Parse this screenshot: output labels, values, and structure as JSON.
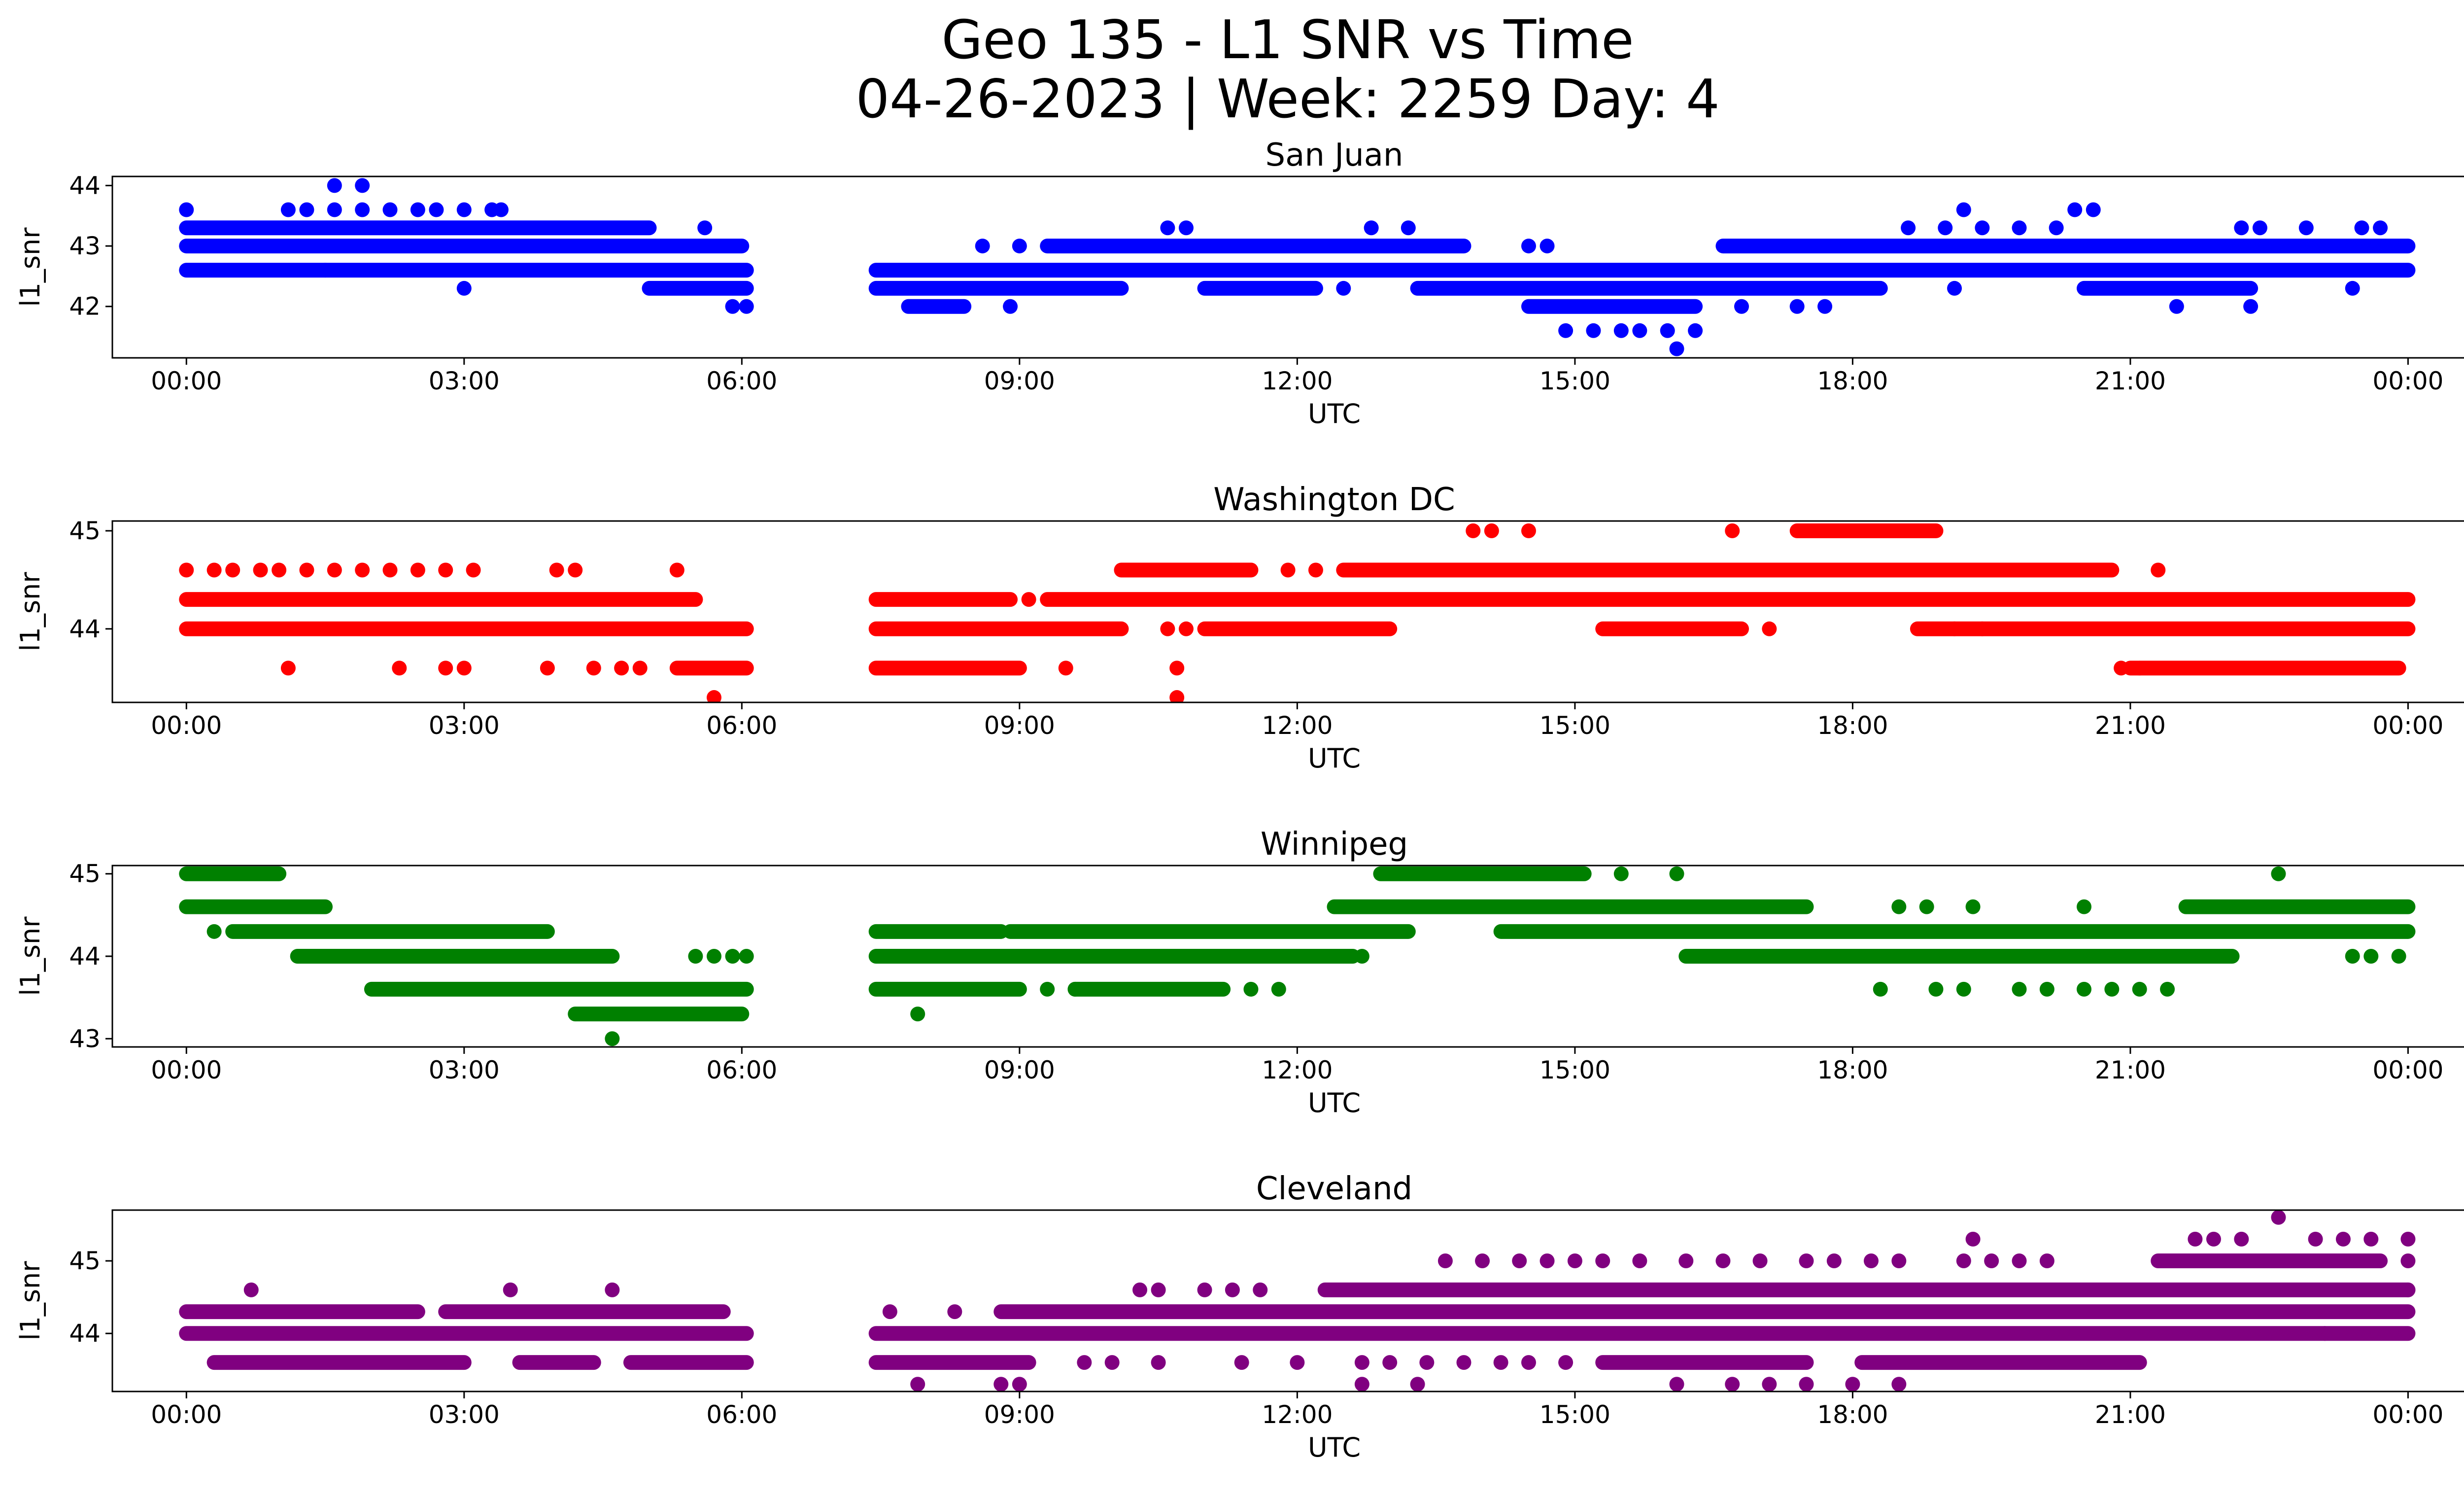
{
  "figure": {
    "title_line1": "Geo 135 - L1 SNR vs Time",
    "title_line2": "04-26-2023 | Week: 2259 Day: 4"
  },
  "chart_data": [
    {
      "type": "scatter",
      "title": "San Juan",
      "xlabel": "UTC",
      "ylabel": "l1_snr",
      "color": "#0000ff",
      "xlim_hours": [
        -0.8,
        25.6
      ],
      "ylim": [
        41.15,
        44.15
      ],
      "x_ticks": [
        "00:00",
        "03:00",
        "06:00",
        "09:00",
        "12:00",
        "15:00",
        "18:00",
        "21:00",
        "00:00"
      ],
      "y_ticks": [
        42,
        43,
        44
      ],
      "gap_hours": [
        6.05,
        7.45
      ],
      "series": [
        {
          "y": 43.3,
          "ranges": [
            [
              0.0,
              5.0
            ]
          ]
        },
        {
          "y": 43.0,
          "ranges": [
            [
              0.0,
              6.0
            ],
            [
              9.3,
              13.8
            ],
            [
              16.6,
              24.0
            ]
          ]
        },
        {
          "y": 42.6,
          "ranges": [
            [
              0.0,
              6.05
            ],
            [
              7.45,
              24.0
            ]
          ]
        },
        {
          "y": 42.3,
          "ranges": [
            [
              5.0,
              6.05
            ],
            [
              7.45,
              10.1
            ],
            [
              11.0,
              12.2
            ],
            [
              13.3,
              18.3
            ],
            [
              20.5,
              22.3
            ]
          ]
        },
        {
          "y": 42.0,
          "ranges": [
            [
              7.8,
              8.4
            ],
            [
              14.5,
              16.3
            ]
          ]
        }
      ],
      "points": [
        {
          "x": 0.0,
          "y": 43.6
        },
        {
          "x": 1.1,
          "y": 43.6
        },
        {
          "x": 1.3,
          "y": 43.6
        },
        {
          "x": 1.6,
          "y": 43.6
        },
        {
          "x": 1.9,
          "y": 43.6
        },
        {
          "x": 2.2,
          "y": 43.6
        },
        {
          "x": 2.5,
          "y": 43.6
        },
        {
          "x": 2.7,
          "y": 43.6
        },
        {
          "x": 3.0,
          "y": 43.6
        },
        {
          "x": 3.3,
          "y": 43.6
        },
        {
          "x": 3.4,
          "y": 43.6
        },
        {
          "x": 1.6,
          "y": 44.0
        },
        {
          "x": 1.9,
          "y": 44.0
        },
        {
          "x": 1.5,
          "y": 42.6
        },
        {
          "x": 3.0,
          "y": 42.3
        },
        {
          "x": 5.6,
          "y": 43.3
        },
        {
          "x": 5.9,
          "y": 42.0
        },
        {
          "x": 6.05,
          "y": 42.0
        },
        {
          "x": 8.6,
          "y": 43.0
        },
        {
          "x": 9.0,
          "y": 43.0
        },
        {
          "x": 8.9,
          "y": 42.0
        },
        {
          "x": 10.6,
          "y": 43.3
        },
        {
          "x": 10.8,
          "y": 43.3
        },
        {
          "x": 12.8,
          "y": 43.3
        },
        {
          "x": 13.2,
          "y": 43.3
        },
        {
          "x": 12.5,
          "y": 42.3
        },
        {
          "x": 14.5,
          "y": 43.0
        },
        {
          "x": 14.7,
          "y": 43.0
        },
        {
          "x": 14.9,
          "y": 41.6
        },
        {
          "x": 15.2,
          "y": 41.6
        },
        {
          "x": 15.5,
          "y": 41.6
        },
        {
          "x": 15.7,
          "y": 41.6
        },
        {
          "x": 16.0,
          "y": 41.6
        },
        {
          "x": 16.3,
          "y": 41.6
        },
        {
          "x": 16.1,
          "y": 41.3
        },
        {
          "x": 16.8,
          "y": 42.0
        },
        {
          "x": 17.4,
          "y": 42.0
        },
        {
          "x": 17.7,
          "y": 42.0
        },
        {
          "x": 18.6,
          "y": 43.3
        },
        {
          "x": 19.0,
          "y": 43.3
        },
        {
          "x": 19.2,
          "y": 43.6
        },
        {
          "x": 19.4,
          "y": 43.3
        },
        {
          "x": 19.8,
          "y": 43.3
        },
        {
          "x": 20.2,
          "y": 43.3
        },
        {
          "x": 20.4,
          "y": 43.6
        },
        {
          "x": 20.6,
          "y": 43.6
        },
        {
          "x": 19.1,
          "y": 42.3
        },
        {
          "x": 21.5,
          "y": 42.0
        },
        {
          "x": 22.3,
          "y": 42.0
        },
        {
          "x": 22.2,
          "y": 43.3
        },
        {
          "x": 22.4,
          "y": 43.3
        },
        {
          "x": 22.9,
          "y": 43.3
        },
        {
          "x": 23.5,
          "y": 43.3
        },
        {
          "x": 23.7,
          "y": 43.3
        },
        {
          "x": 23.4,
          "y": 42.3
        }
      ]
    },
    {
      "type": "scatter",
      "title": "Washington DC",
      "xlabel": "UTC",
      "ylabel": "l1_snr",
      "color": "#ff0000",
      "xlim_hours": [
        -0.8,
        25.6
      ],
      "ylim": [
        43.25,
        45.1
      ],
      "x_ticks": [
        "00:00",
        "03:00",
        "06:00",
        "09:00",
        "12:00",
        "15:00",
        "18:00",
        "21:00",
        "00:00"
      ],
      "y_ticks": [
        44,
        45
      ],
      "gap_hours": [
        6.05,
        7.45
      ],
      "series": [
        {
          "y": 44.3,
          "ranges": [
            [
              0.0,
              5.5
            ],
            [
              7.45,
              8.9
            ],
            [
              9.3,
              24.0
            ]
          ]
        },
        {
          "y": 44.0,
          "ranges": [
            [
              0.0,
              6.05
            ],
            [
              7.45,
              10.1
            ],
            [
              11.0,
              13.0
            ],
            [
              15.3,
              16.8
            ],
            [
              18.7,
              24.0
            ]
          ]
        },
        {
          "y": 44.6,
          "ranges": [
            [
              10.1,
              11.5
            ],
            [
              12.5,
              20.8
            ]
          ]
        },
        {
          "y": 43.6,
          "ranges": [
            [
              5.3,
              6.05
            ],
            [
              7.45,
              9.0
            ],
            [
              21.0,
              23.9
            ]
          ]
        },
        {
          "y": 45.0,
          "ranges": [
            [
              17.4,
              18.9
            ]
          ]
        }
      ],
      "points": [
        {
          "x": 0.0,
          "y": 44.6
        },
        {
          "x": 0.3,
          "y": 44.6
        },
        {
          "x": 0.5,
          "y": 44.6
        },
        {
          "x": 0.8,
          "y": 44.6
        },
        {
          "x": 1.0,
          "y": 44.6
        },
        {
          "x": 1.3,
          "y": 44.6
        },
        {
          "x": 1.6,
          "y": 44.6
        },
        {
          "x": 1.9,
          "y": 44.6
        },
        {
          "x": 2.2,
          "y": 44.6
        },
        {
          "x": 2.5,
          "y": 44.6
        },
        {
          "x": 2.8,
          "y": 44.6
        },
        {
          "x": 3.1,
          "y": 44.6
        },
        {
          "x": 4.0,
          "y": 44.6
        },
        {
          "x": 4.2,
          "y": 44.6
        },
        {
          "x": 5.3,
          "y": 44.6
        },
        {
          "x": 1.1,
          "y": 43.6
        },
        {
          "x": 2.3,
          "y": 43.6
        },
        {
          "x": 2.8,
          "y": 43.6
        },
        {
          "x": 3.0,
          "y": 43.6
        },
        {
          "x": 3.9,
          "y": 43.6
        },
        {
          "x": 4.4,
          "y": 43.6
        },
        {
          "x": 4.7,
          "y": 43.6
        },
        {
          "x": 4.9,
          "y": 43.6
        },
        {
          "x": 5.7,
          "y": 43.3
        },
        {
          "x": 10.7,
          "y": 43.3
        },
        {
          "x": 10.7,
          "y": 43.6
        },
        {
          "x": 9.5,
          "y": 43.6
        },
        {
          "x": 10.6,
          "y": 44.0
        },
        {
          "x": 10.8,
          "y": 44.0
        },
        {
          "x": 9.1,
          "y": 44.3
        },
        {
          "x": 11.9,
          "y": 44.6
        },
        {
          "x": 12.2,
          "y": 44.6
        },
        {
          "x": 13.9,
          "y": 45.0
        },
        {
          "x": 14.1,
          "y": 45.0
        },
        {
          "x": 14.5,
          "y": 45.0
        },
        {
          "x": 16.7,
          "y": 45.0
        },
        {
          "x": 17.1,
          "y": 44.0
        },
        {
          "x": 19.1,
          "y": 44.0
        },
        {
          "x": 19.4,
          "y": 44.0
        },
        {
          "x": 21.3,
          "y": 44.6
        },
        {
          "x": 20.9,
          "y": 43.6
        },
        {
          "x": 21.1,
          "y": 43.6
        }
      ]
    },
    {
      "type": "scatter",
      "title": "Winnipeg",
      "xlabel": "UTC",
      "ylabel": "l1_snr",
      "color": "#008000",
      "xlim_hours": [
        -0.8,
        25.6
      ],
      "ylim": [
        42.9,
        45.1
      ],
      "x_ticks": [
        "00:00",
        "03:00",
        "06:00",
        "09:00",
        "12:00",
        "15:00",
        "18:00",
        "21:00",
        "00:00"
      ],
      "y_ticks": [
        43,
        44,
        45
      ],
      "gap_hours": [
        6.05,
        7.45
      ],
      "series": [
        {
          "y": 45.0,
          "ranges": [
            [
              0.0,
              1.0
            ],
            [
              12.9,
              15.1
            ]
          ]
        },
        {
          "y": 44.6,
          "ranges": [
            [
              0.0,
              1.5
            ],
            [
              12.4,
              17.5
            ],
            [
              21.6,
              24.0
            ]
          ]
        },
        {
          "y": 44.3,
          "ranges": [
            [
              0.5,
              3.9
            ],
            [
              7.45,
              8.8
            ],
            [
              8.9,
              13.2
            ],
            [
              14.2,
              24.0
            ]
          ]
        },
        {
          "y": 44.0,
          "ranges": [
            [
              1.2,
              4.6
            ],
            [
              7.45,
              12.6
            ],
            [
              16.2,
              22.1
            ]
          ]
        },
        {
          "y": 43.6,
          "ranges": [
            [
              2.0,
              6.05
            ],
            [
              7.45,
              9.0
            ],
            [
              9.6,
              11.2
            ]
          ]
        },
        {
          "y": 43.3,
          "ranges": [
            [
              4.2,
              6.0
            ]
          ]
        }
      ],
      "points": [
        {
          "x": 0.3,
          "y": 44.3
        },
        {
          "x": 5.5,
          "y": 44.0
        },
        {
          "x": 5.7,
          "y": 44.0
        },
        {
          "x": 5.9,
          "y": 44.0
        },
        {
          "x": 6.05,
          "y": 44.0
        },
        {
          "x": 4.6,
          "y": 43.0
        },
        {
          "x": 7.9,
          "y": 43.3
        },
        {
          "x": 9.3,
          "y": 43.6
        },
        {
          "x": 9.6,
          "y": 43.6
        },
        {
          "x": 11.5,
          "y": 43.6
        },
        {
          "x": 11.8,
          "y": 43.6
        },
        {
          "x": 12.7,
          "y": 44.0
        },
        {
          "x": 15.5,
          "y": 45.0
        },
        {
          "x": 16.1,
          "y": 45.0
        },
        {
          "x": 18.3,
          "y": 43.6
        },
        {
          "x": 18.9,
          "y": 43.6
        },
        {
          "x": 19.2,
          "y": 43.6
        },
        {
          "x": 19.8,
          "y": 43.6
        },
        {
          "x": 20.1,
          "y": 43.6
        },
        {
          "x": 20.5,
          "y": 43.6
        },
        {
          "x": 20.8,
          "y": 43.6
        },
        {
          "x": 21.1,
          "y": 43.6
        },
        {
          "x": 21.4,
          "y": 43.6
        },
        {
          "x": 18.5,
          "y": 44.6
        },
        {
          "x": 18.8,
          "y": 44.6
        },
        {
          "x": 19.3,
          "y": 44.6
        },
        {
          "x": 20.5,
          "y": 44.6
        },
        {
          "x": 22.6,
          "y": 45.0
        },
        {
          "x": 23.4,
          "y": 44.0
        },
        {
          "x": 23.6,
          "y": 44.0
        },
        {
          "x": 23.9,
          "y": 44.0
        }
      ]
    },
    {
      "type": "scatter",
      "title": "Cleveland",
      "xlabel": "UTC",
      "ylabel": "l1_snr",
      "color": "#800080",
      "xlim_hours": [
        -0.8,
        25.6
      ],
      "ylim": [
        43.2,
        45.7
      ],
      "x_ticks": [
        "00:00",
        "03:00",
        "06:00",
        "09:00",
        "12:00",
        "15:00",
        "18:00",
        "21:00",
        "00:00"
      ],
      "y_ticks": [
        44,
        45
      ],
      "gap_hours": [
        6.05,
        7.45
      ],
      "series": [
        {
          "y": 44.3,
          "ranges": [
            [
              0.0,
              2.5
            ],
            [
              2.8,
              5.8
            ],
            [
              8.8,
              24.0
            ]
          ]
        },
        {
          "y": 44.0,
          "ranges": [
            [
              0.0,
              6.05
            ],
            [
              7.45,
              24.0
            ]
          ]
        },
        {
          "y": 43.6,
          "ranges": [
            [
              0.3,
              3.0
            ],
            [
              3.6,
              4.4
            ],
            [
              4.8,
              6.05
            ],
            [
              7.45,
              9.1
            ],
            [
              15.3,
              17.5
            ],
            [
              18.1,
              21.1
            ]
          ]
        },
        {
          "y": 44.6,
          "ranges": [
            [
              12.3,
              24.0
            ]
          ]
        },
        {
          "y": 45.0,
          "ranges": [
            [
              21.3,
              23.7
            ]
          ]
        }
      ],
      "points": [
        {
          "x": 0.7,
          "y": 44.6
        },
        {
          "x": 3.5,
          "y": 44.6
        },
        {
          "x": 4.6,
          "y": 44.6
        },
        {
          "x": 10.3,
          "y": 44.6
        },
        {
          "x": 10.5,
          "y": 44.6
        },
        {
          "x": 11.0,
          "y": 44.6
        },
        {
          "x": 11.3,
          "y": 44.6
        },
        {
          "x": 11.6,
          "y": 44.6
        },
        {
          "x": 7.6,
          "y": 44.3
        },
        {
          "x": 8.3,
          "y": 44.3
        },
        {
          "x": 7.9,
          "y": 43.3
        },
        {
          "x": 8.8,
          "y": 43.3
        },
        {
          "x": 9.0,
          "y": 43.3
        },
        {
          "x": 9.7,
          "y": 43.6
        },
        {
          "x": 10.0,
          "y": 43.6
        },
        {
          "x": 10.5,
          "y": 43.6
        },
        {
          "x": 11.4,
          "y": 43.6
        },
        {
          "x": 12.0,
          "y": 43.6
        },
        {
          "x": 12.7,
          "y": 43.6
        },
        {
          "x": 13.0,
          "y": 43.6
        },
        {
          "x": 13.4,
          "y": 43.6
        },
        {
          "x": 13.8,
          "y": 43.6
        },
        {
          "x": 14.2,
          "y": 43.6
        },
        {
          "x": 14.5,
          "y": 43.6
        },
        {
          "x": 14.9,
          "y": 43.6
        },
        {
          "x": 12.7,
          "y": 43.3
        },
        {
          "x": 13.3,
          "y": 43.3
        },
        {
          "x": 16.1,
          "y": 43.3
        },
        {
          "x": 16.7,
          "y": 43.3
        },
        {
          "x": 17.1,
          "y": 43.3
        },
        {
          "x": 17.5,
          "y": 43.3
        },
        {
          "x": 18.0,
          "y": 43.3
        },
        {
          "x": 18.5,
          "y": 43.3
        },
        {
          "x": 13.6,
          "y": 45.0
        },
        {
          "x": 14.0,
          "y": 45.0
        },
        {
          "x": 14.4,
          "y": 45.0
        },
        {
          "x": 14.7,
          "y": 45.0
        },
        {
          "x": 15.0,
          "y": 45.0
        },
        {
          "x": 15.3,
          "y": 45.0
        },
        {
          "x": 15.7,
          "y": 45.0
        },
        {
          "x": 16.2,
          "y": 45.0
        },
        {
          "x": 16.6,
          "y": 45.0
        },
        {
          "x": 17.0,
          "y": 45.0
        },
        {
          "x": 17.5,
          "y": 45.0
        },
        {
          "x": 17.8,
          "y": 45.0
        },
        {
          "x": 18.2,
          "y": 45.0
        },
        {
          "x": 18.5,
          "y": 45.0
        },
        {
          "x": 19.2,
          "y": 45.0
        },
        {
          "x": 19.5,
          "y": 45.0
        },
        {
          "x": 19.8,
          "y": 45.0
        },
        {
          "x": 20.1,
          "y": 45.0
        },
        {
          "x": 19.3,
          "y": 45.3
        },
        {
          "x": 21.7,
          "y": 45.3
        },
        {
          "x": 21.9,
          "y": 45.3
        },
        {
          "x": 22.2,
          "y": 45.3
        },
        {
          "x": 22.6,
          "y": 45.6
        },
        {
          "x": 23.0,
          "y": 45.3
        },
        {
          "x": 23.3,
          "y": 45.3
        },
        {
          "x": 23.6,
          "y": 45.3
        },
        {
          "x": 24.0,
          "y": 45.3
        },
        {
          "x": 24.0,
          "y": 45.0
        },
        {
          "x": 24.0,
          "y": 44.6
        },
        {
          "x": 23.1,
          "y": 44.0
        }
      ]
    }
  ]
}
